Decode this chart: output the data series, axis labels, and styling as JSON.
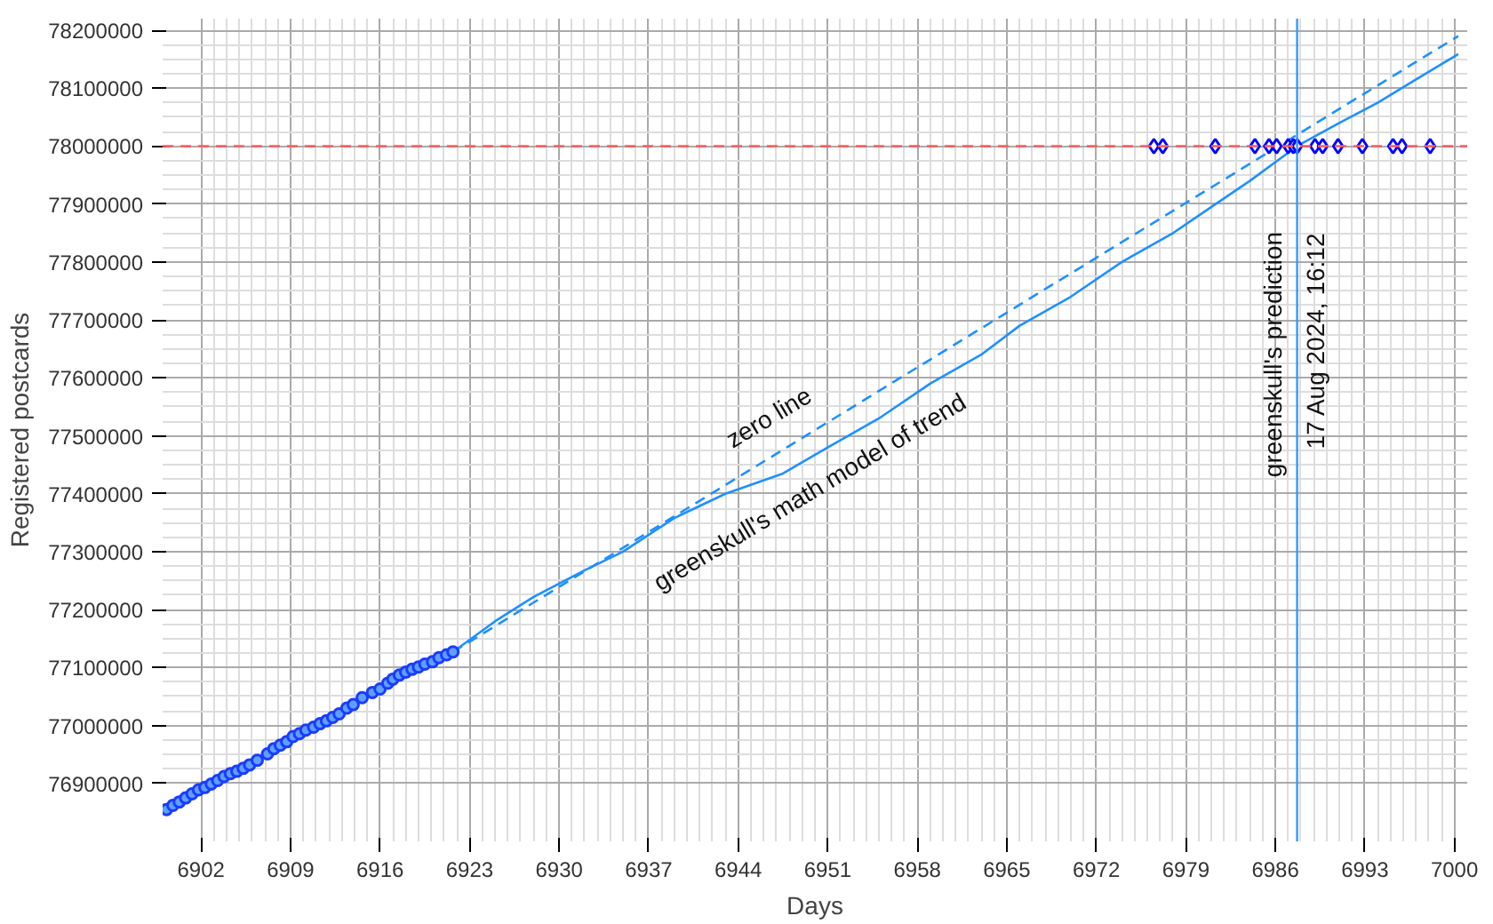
{
  "chart_data": {
    "type": "line",
    "xlabel": "Days",
    "ylabel": "Registered postcards",
    "xlim": [
      6899,
      7001
    ],
    "ylim": [
      76800000,
      78220000
    ],
    "xticks": [
      6902,
      6909,
      6916,
      6923,
      6930,
      6937,
      6944,
      6951,
      6958,
      6965,
      6972,
      6979,
      6986,
      6993,
      7000
    ],
    "yticks": [
      76900000,
      77000000,
      77100000,
      77200000,
      77300000,
      77400000,
      77500000,
      77600000,
      77700000,
      77800000,
      77900000,
      78000000,
      78100000,
      78200000
    ],
    "grid": true,
    "series": [
      {
        "color": "#1e90ff",
        "line_style": "solid",
        "x": [
          6899,
          6905,
          6910,
          6916,
          6921.7,
          6925,
          6928,
          6932,
          6935,
          6939,
          6943,
          6947.5,
          6951,
          6955,
          6959,
          6963,
          6966,
          6970,
          6974,
          6978,
          6981,
          6984,
          6987.7,
          6991,
          6994,
          6997,
          7000.3
        ],
        "values": [
          76852000,
          76925000,
          76990000,
          77063000,
          77127000,
          77180000,
          77222000,
          77268000,
          77300000,
          77358000,
          77400000,
          77435000,
          77480000,
          77530000,
          77590000,
          77640000,
          77690000,
          77740000,
          77800000,
          77850000,
          77895000,
          77940000,
          78000000,
          78040000,
          78075000,
          78115000,
          78159000
        ]
      },
      {
        "color": "#1e90ff",
        "line_style": "dashed",
        "x": [
          6921.7,
          7000.3
        ],
        "values": [
          77127000,
          78190000
        ]
      },
      {
        "type": "scatter",
        "color": "#1a3cff",
        "marker": "circle",
        "x": [
          6899.3,
          6899.8,
          6900.3,
          6900.8,
          6901.3,
          6901.8,
          6902.3,
          6902.8,
          6903.3,
          6903.8,
          6904.3,
          6904.8,
          6905.3,
          6905.8,
          6906.4,
          6907.2,
          6907.7,
          6908.2,
          6908.7,
          6909.2,
          6909.7,
          6910.2,
          6910.8,
          6911.3,
          6911.8,
          6912.3,
          6912.8,
          6913.4,
          6913.9,
          6914.6,
          6915.4,
          6916.0,
          6916.6,
          6917.0,
          6917.5,
          6918.0,
          6918.5,
          6919.0,
          6919.5,
          6920.1,
          6920.6,
          6921.2,
          6921.7
        ],
        "values": [
          76855000,
          76862000,
          76868000,
          76875000,
          76882000,
          76889000,
          76893000,
          76899000,
          76905000,
          76912000,
          76917000,
          76921000,
          76926000,
          76932000,
          76940000,
          76951000,
          76960000,
          76966000,
          76972000,
          76981000,
          76986000,
          76992000,
          76997000,
          77003000,
          77008000,
          77014000,
          77020000,
          77030000,
          77036000,
          77048000,
          77057000,
          77063000,
          77073000,
          77080000,
          77087000,
          77092000,
          77097000,
          77101000,
          77106000,
          77110000,
          77117000,
          77122000,
          77127000
        ]
      },
      {
        "type": "scatter",
        "color": "#0000ff",
        "marker": "diamond",
        "x": [
          6976.5,
          6977.2,
          6981.3,
          6984.4,
          6985.5,
          6986.1,
          6987.0,
          6987.4,
          6987.7,
          6989.1,
          6989.7,
          6990.9,
          6992.8,
          6995.2,
          6995.9,
          6998.1
        ],
        "values": [
          78000000,
          78000000,
          78000000,
          78000000,
          78000000,
          78000000,
          78000000,
          78000000,
          78000000,
          78000000,
          78000000,
          78000000,
          78000000,
          78000000,
          78000000,
          78000000
        ]
      }
    ],
    "ref_lines": [
      {
        "axis": "y",
        "value": 78000000,
        "color": "#ff5a5a",
        "line_style": "dashed"
      },
      {
        "axis": "x",
        "value": 6987.7,
        "color": "#3399ff",
        "line_style": "solid",
        "label": "greenskull's prediction"
      }
    ],
    "annotations": [
      "zero line",
      "greenskull's math model of trend",
      "17 Aug 2024, 16:12"
    ]
  }
}
